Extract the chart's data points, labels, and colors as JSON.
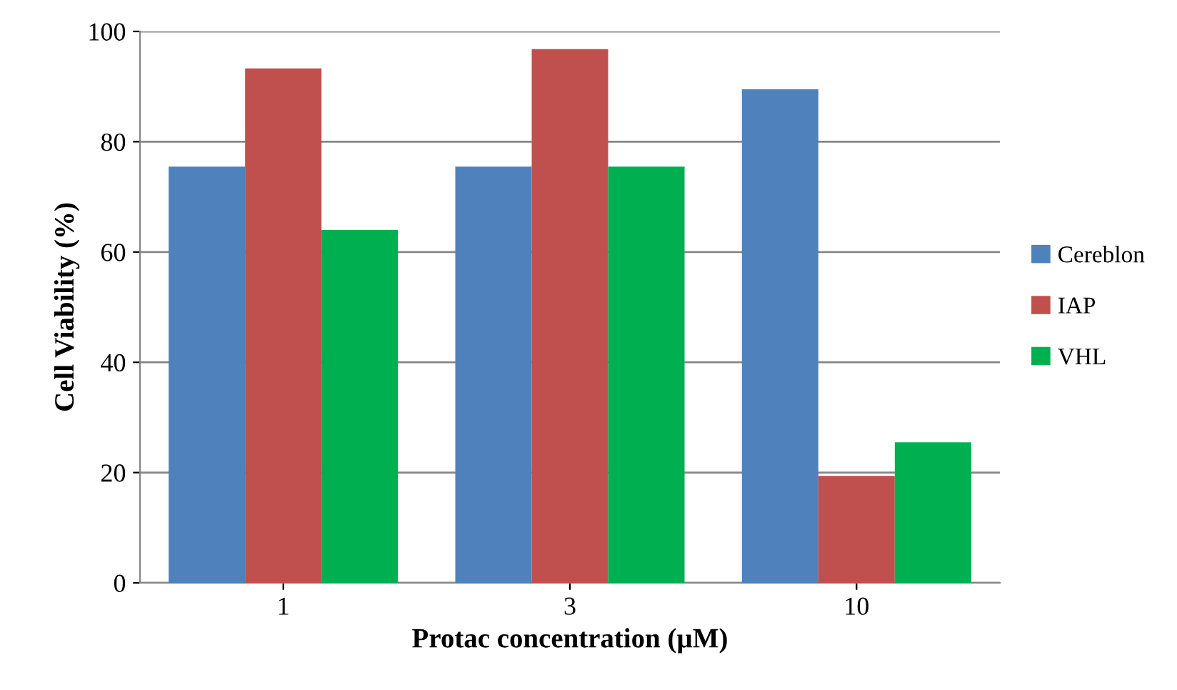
{
  "chart_data": {
    "type": "bar",
    "xlabel": "Protac concentration (µM)",
    "ylabel": "Cell Viability (%)",
    "categories": [
      "1",
      "3",
      "10"
    ],
    "series": [
      {
        "name": "Cereblon",
        "color": "#4f81bd",
        "values": [
          75.5,
          75.5,
          89.5
        ]
      },
      {
        "name": "IAP",
        "color": "#c0504d",
        "values": [
          93.3,
          96.8,
          19.4
        ]
      },
      {
        "name": "VHL",
        "color": "#00b050",
        "values": [
          64,
          75.5,
          25.5
        ]
      }
    ],
    "ylim": [
      0,
      100
    ],
    "yticks": [
      0,
      20,
      40,
      60,
      80,
      100
    ],
    "grid": "y",
    "legend": "right"
  }
}
